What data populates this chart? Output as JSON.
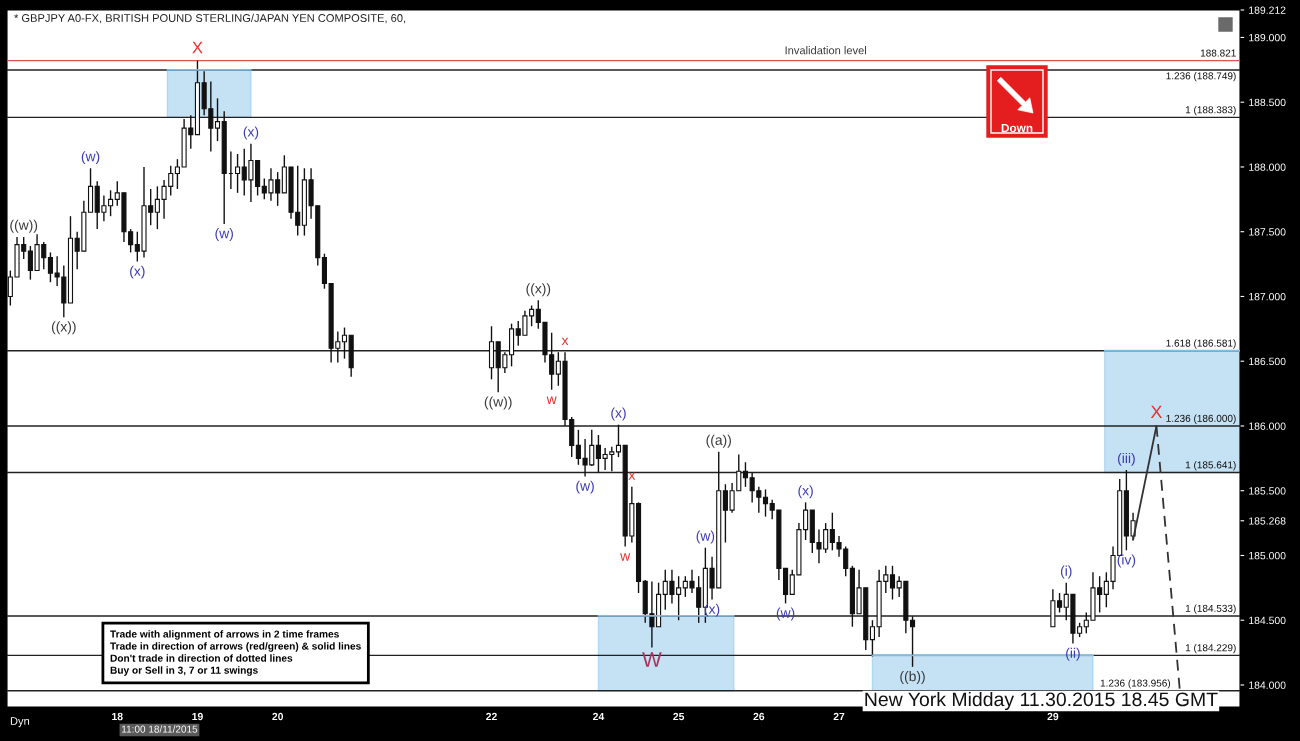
{
  "chart_data": {
    "type": "candlestick",
    "title": "* GBPJPY A0-FX, BRITISH POUND STERLING/JAPAN YEN COMPOSITE, 60,",
    "color": "#111111",
    "x": [
      "2015-11-16T16:00",
      "2015-11-16T18:00",
      "2015-11-16T20:00",
      "2015-11-16T22:00",
      "2015-11-17T00:00",
      "2015-11-17T02:00",
      "2015-11-17T04:00",
      "2015-11-17T06:00",
      "2015-11-17T08:00",
      "2015-11-17T10:00",
      "2015-11-17T12:00",
      "2015-11-17T14:00",
      "2015-11-17T16:00",
      "2015-11-17T18:00",
      "2015-11-17T20:00",
      "2015-11-17T22:00",
      "2015-11-18T00:00",
      "2015-11-18T02:00",
      "2015-11-18T04:00",
      "2015-11-18T06:00",
      "2015-11-18T08:00",
      "2015-11-18T10:00",
      "2015-11-18T12:00",
      "2015-11-18T14:00",
      "2015-11-18T16:00",
      "2015-11-18T18:00",
      "2015-11-18T20:00",
      "2015-11-18T22:00",
      "2015-11-19T00:00",
      "2015-11-19T02:00",
      "2015-11-19T04:00",
      "2015-11-19T06:00",
      "2015-11-19T08:00",
      "2015-11-19T10:00",
      "2015-11-19T12:00",
      "2015-11-19T14:00",
      "2015-11-19T16:00",
      "2015-11-19T18:00",
      "2015-11-19T20:00",
      "2015-11-19T22:00",
      "2015-11-20T00:00",
      "2015-11-20T02:00",
      "2015-11-20T04:00",
      "2015-11-20T06:00",
      "2015-11-20T08:00",
      "2015-11-20T10:00",
      "2015-11-20T12:00",
      "2015-11-20T14:00",
      "2015-11-20T16:00",
      "2015-11-20T18:00",
      "2015-11-20T20:00",
      "2015-11-20T22:00",
      "2015-11-22T16:00",
      "2015-11-22T18:00",
      "2015-11-22T20:00",
      "2015-11-22T22:00",
      "2015-11-23T00:00",
      "2015-11-23T02:00",
      "2015-11-23T04:00",
      "2015-11-23T06:00",
      "2015-11-23T08:00",
      "2015-11-23T10:00",
      "2015-11-23T12:00",
      "2015-11-23T14:00",
      "2015-11-23T16:00",
      "2015-11-23T18:00",
      "2015-11-23T20:00",
      "2015-11-23T22:00",
      "2015-11-24T00:00",
      "2015-11-24T02:00",
      "2015-11-24T04:00",
      "2015-11-24T06:00",
      "2015-11-24T08:00",
      "2015-11-24T10:00",
      "2015-11-24T12:00",
      "2015-11-24T14:00",
      "2015-11-24T16:00",
      "2015-11-24T18:00",
      "2015-11-24T20:00",
      "2015-11-24T22:00",
      "2015-11-25T00:00",
      "2015-11-25T02:00",
      "2015-11-25T04:00",
      "2015-11-25T06:00",
      "2015-11-25T08:00",
      "2015-11-25T10:00",
      "2015-11-25T12:00",
      "2015-11-25T14:00",
      "2015-11-25T16:00",
      "2015-11-25T18:00",
      "2015-11-25T20:00",
      "2015-11-25T22:00",
      "2015-11-26T00:00",
      "2015-11-26T02:00",
      "2015-11-26T04:00",
      "2015-11-26T06:00",
      "2015-11-26T08:00",
      "2015-11-26T10:00",
      "2015-11-26T12:00",
      "2015-11-26T14:00",
      "2015-11-26T16:00",
      "2015-11-26T18:00",
      "2015-11-26T20:00",
      "2015-11-26T22:00",
      "2015-11-27T00:00",
      "2015-11-27T02:00",
      "2015-11-27T04:00",
      "2015-11-27T06:00",
      "2015-11-27T08:00",
      "2015-11-27T10:00",
      "2015-11-27T12:00",
      "2015-11-27T14:00",
      "2015-11-27T16:00",
      "2015-11-27T18:00",
      "2015-11-27T20:00",
      "2015-11-27T22:00",
      "2015-11-29T16:00",
      "2015-11-29T18:00",
      "2015-11-29T20:00",
      "2015-11-29T22:00",
      "2015-11-30T00:00",
      "2015-11-30T02:00",
      "2015-11-30T04:00",
      "2015-11-30T06:00",
      "2015-11-30T08:00",
      "2015-11-30T10:00",
      "2015-11-30T12:00",
      "2015-11-30T14:00",
      "2015-11-30T16:00"
    ],
    "ohlc": [
      [
        187.0,
        187.2,
        186.93,
        187.15
      ],
      [
        187.15,
        187.46,
        187.15,
        187.4
      ],
      [
        187.4,
        187.46,
        187.29,
        187.35
      ],
      [
        187.35,
        187.39,
        187.13,
        187.2
      ],
      [
        187.2,
        187.48,
        187.2,
        187.4
      ],
      [
        187.4,
        187.42,
        187.21,
        187.3
      ],
      [
        187.3,
        187.34,
        187.11,
        187.18
      ],
      [
        187.18,
        187.31,
        187.08,
        187.15
      ],
      [
        187.15,
        187.24,
        186.84,
        186.95
      ],
      [
        186.95,
        187.62,
        186.95,
        187.45
      ],
      [
        187.45,
        187.5,
        187.21,
        187.35
      ],
      [
        187.35,
        187.74,
        187.35,
        187.65
      ],
      [
        187.65,
        187.99,
        187.65,
        187.85
      ],
      [
        187.85,
        187.89,
        187.52,
        187.65
      ],
      [
        187.65,
        187.78,
        187.58,
        187.7
      ],
      [
        187.7,
        187.82,
        187.62,
        187.75
      ],
      [
        187.75,
        187.89,
        187.7,
        187.8
      ],
      [
        187.8,
        187.8,
        187.42,
        187.5
      ],
      [
        187.5,
        187.52,
        187.34,
        187.4
      ],
      [
        187.4,
        187.5,
        187.27,
        187.35
      ],
      [
        187.35,
        188.0,
        187.3,
        187.7
      ],
      [
        187.7,
        187.83,
        187.55,
        187.65
      ],
      [
        187.65,
        187.85,
        187.52,
        187.75
      ],
      [
        187.75,
        187.9,
        187.6,
        187.85
      ],
      [
        187.85,
        188.01,
        187.78,
        187.95
      ],
      [
        187.95,
        188.06,
        187.83,
        188.0
      ],
      [
        188.0,
        188.37,
        188.0,
        188.3
      ],
      [
        188.3,
        188.4,
        188.14,
        188.25
      ],
      [
        188.25,
        188.82,
        188.25,
        188.65
      ],
      [
        188.65,
        188.74,
        188.4,
        188.45
      ],
      [
        188.45,
        188.66,
        188.12,
        188.3
      ],
      [
        188.3,
        188.53,
        188.2,
        188.35
      ],
      [
        188.35,
        188.43,
        187.56,
        187.95
      ],
      [
        187.95,
        188.12,
        187.83,
        187.95
      ],
      [
        187.95,
        188.1,
        187.8,
        188.0
      ],
      [
        188.0,
        188.14,
        187.78,
        187.9
      ],
      [
        187.9,
        188.18,
        187.73,
        188.05
      ],
      [
        188.05,
        188.05,
        187.78,
        187.85
      ],
      [
        187.85,
        187.91,
        187.75,
        187.8
      ],
      [
        187.8,
        187.99,
        187.74,
        187.9
      ],
      [
        187.9,
        187.96,
        187.7,
        187.8
      ],
      [
        187.8,
        188.09,
        187.8,
        188.0
      ],
      [
        188.0,
        188.0,
        187.6,
        187.65
      ],
      [
        187.65,
        188.01,
        187.47,
        187.55
      ],
      [
        187.55,
        187.99,
        187.47,
        187.9
      ],
      [
        187.9,
        187.99,
        187.6,
        187.7
      ],
      [
        187.7,
        187.7,
        187.24,
        187.3
      ],
      [
        187.3,
        187.33,
        187.06,
        187.1
      ],
      [
        187.1,
        187.1,
        186.49,
        186.6
      ],
      [
        186.6,
        186.73,
        186.49,
        186.65
      ],
      [
        186.65,
        186.76,
        186.52,
        186.7
      ],
      [
        186.7,
        186.7,
        186.38,
        186.45
      ],
      [
        186.45,
        186.77,
        186.36,
        186.65
      ],
      [
        186.65,
        186.65,
        186.26,
        186.45
      ],
      [
        186.45,
        186.57,
        186.41,
        186.55
      ],
      [
        186.55,
        186.79,
        186.46,
        186.75
      ],
      [
        186.75,
        186.81,
        186.62,
        186.7
      ],
      [
        186.7,
        186.89,
        186.7,
        186.85
      ],
      [
        186.85,
        186.93,
        186.77,
        186.9
      ],
      [
        186.9,
        186.97,
        186.75,
        186.8
      ],
      [
        186.8,
        186.8,
        186.49,
        186.55
      ],
      [
        186.55,
        186.72,
        186.28,
        186.4
      ],
      [
        186.4,
        186.57,
        186.31,
        186.5
      ],
      [
        186.5,
        186.57,
        186.0,
        186.05
      ],
      [
        186.05,
        186.07,
        185.76,
        185.85
      ],
      [
        185.85,
        185.97,
        185.7,
        185.75
      ],
      [
        185.75,
        185.9,
        185.61,
        185.7
      ],
      [
        185.7,
        185.97,
        185.69,
        185.85
      ],
      [
        185.85,
        185.93,
        185.64,
        185.75
      ],
      [
        185.75,
        185.83,
        185.66,
        185.78
      ],
      [
        185.78,
        185.84,
        185.65,
        185.8
      ],
      [
        185.8,
        186.01,
        185.76,
        185.85
      ],
      [
        185.85,
        185.85,
        185.07,
        185.15
      ],
      [
        185.15,
        185.53,
        185.1,
        185.4
      ],
      [
        185.4,
        185.41,
        184.71,
        184.8
      ],
      [
        184.8,
        184.81,
        184.48,
        184.55
      ],
      [
        184.55,
        184.8,
        184.29,
        184.45
      ],
      [
        184.45,
        184.79,
        184.45,
        184.7
      ],
      [
        184.7,
        184.89,
        184.58,
        184.8
      ],
      [
        184.8,
        184.89,
        184.63,
        184.7
      ],
      [
        184.7,
        184.84,
        184.5,
        184.75
      ],
      [
        184.75,
        184.84,
        184.68,
        184.8
      ],
      [
        184.8,
        184.89,
        184.71,
        184.75
      ],
      [
        184.75,
        184.84,
        184.48,
        184.6
      ],
      [
        184.6,
        185.06,
        184.48,
        184.9
      ],
      [
        184.9,
        184.99,
        184.66,
        184.75
      ],
      [
        184.75,
        185.8,
        184.75,
        185.5
      ],
      [
        185.5,
        185.55,
        185.1,
        185.35
      ],
      [
        185.35,
        185.56,
        185.33,
        185.5
      ],
      [
        185.5,
        185.78,
        185.5,
        185.65
      ],
      [
        185.65,
        185.72,
        185.53,
        185.6
      ],
      [
        185.6,
        185.64,
        185.41,
        185.5
      ],
      [
        185.5,
        185.53,
        185.33,
        185.45
      ],
      [
        185.45,
        185.51,
        185.3,
        185.4
      ],
      [
        185.4,
        185.43,
        185.28,
        185.35
      ],
      [
        185.35,
        185.35,
        184.81,
        184.9
      ],
      [
        184.9,
        184.9,
        184.63,
        184.7
      ],
      [
        184.7,
        184.89,
        184.7,
        184.85
      ],
      [
        184.85,
        185.25,
        184.85,
        185.2
      ],
      [
        185.2,
        185.41,
        185.12,
        185.35
      ],
      [
        185.35,
        185.35,
        185.02,
        185.1
      ],
      [
        185.1,
        185.2,
        184.94,
        185.05
      ],
      [
        185.05,
        185.25,
        185.02,
        185.2
      ],
      [
        185.2,
        185.33,
        185.04,
        185.1
      ],
      [
        185.1,
        185.15,
        184.99,
        185.05
      ],
      [
        185.05,
        185.07,
        184.84,
        184.9
      ],
      [
        184.9,
        184.92,
        184.45,
        184.55
      ],
      [
        184.55,
        184.89,
        184.55,
        184.75
      ],
      [
        184.75,
        184.75,
        184.27,
        184.35
      ],
      [
        184.35,
        184.5,
        184.22,
        184.45
      ],
      [
        184.45,
        184.89,
        184.37,
        184.8
      ],
      [
        184.8,
        184.92,
        184.71,
        184.85
      ],
      [
        184.85,
        184.92,
        184.66,
        184.75
      ],
      [
        184.75,
        184.84,
        184.68,
        184.8
      ],
      [
        184.8,
        184.8,
        184.4,
        184.5
      ],
      [
        184.5,
        184.53,
        184.14,
        184.45
      ],
      [
        184.45,
        184.74,
        184.45,
        184.65
      ],
      [
        184.65,
        184.71,
        184.56,
        184.6
      ],
      [
        184.6,
        184.79,
        184.5,
        184.7
      ],
      [
        184.7,
        184.7,
        184.32,
        184.4
      ],
      [
        184.4,
        184.48,
        184.37,
        184.45
      ],
      [
        184.45,
        184.56,
        184.4,
        184.5
      ],
      [
        184.5,
        184.87,
        184.5,
        184.75
      ],
      [
        184.75,
        184.84,
        184.56,
        184.7
      ],
      [
        184.7,
        184.87,
        184.6,
        184.8
      ],
      [
        184.8,
        185.07,
        184.74,
        185.0
      ],
      [
        185.0,
        185.59,
        185.0,
        185.5
      ],
      [
        185.5,
        185.66,
        185.04,
        185.15
      ],
      [
        185.15,
        185.33,
        185.12,
        185.268
      ]
    ],
    "series": [
      {
        "type": "line",
        "x": [
          "2015-11-30T16:00",
          "2015-11-30T23:00"
        ],
        "values": [
          185.12,
          186.0
        ],
        "color": "#333333",
        "line_style": "solid"
      },
      {
        "type": "line",
        "x": [
          "2015-11-30T23:00",
          "2015-12-01T06:00"
        ],
        "values": [
          186.0,
          183.956
        ],
        "color": "#333333",
        "line_style": "dashed"
      },
      {
        "type": "line",
        "x": [
          "2015-11-18T15:00",
          "2015-11-19T16:00"
        ],
        "values": [
          188.749,
          188.749
        ],
        "lower": [
          188.383,
          188.383
        ],
        "upper": [
          188.749,
          188.749
        ],
        "color": "#7fbde6"
      },
      {
        "type": "line",
        "x": [
          "2015-11-24T00:00",
          "2015-11-25T16:30"
        ],
        "values": [
          184.533,
          184.533
        ],
        "lower": [
          183.956,
          183.956
        ],
        "upper": [
          184.533,
          184.533
        ],
        "color": "#7fbde6"
      },
      {
        "type": "line",
        "x": [
          "2015-11-27T10:00",
          "2015-11-30T04:00"
        ],
        "values": [
          184.229,
          184.229
        ],
        "lower": [
          183.956,
          183.956
        ],
        "upper": [
          184.229,
          184.229
        ],
        "color": "#7fbde6"
      },
      {
        "type": "line",
        "x": [
          "2015-11-30T07:30",
          "2015-12-02T00:00"
        ],
        "values": [
          186.581,
          186.581
        ],
        "lower": [
          185.641,
          185.641
        ],
        "upper": [
          186.581,
          186.581
        ],
        "color": "#7fbde6"
      }
    ],
    "xlim": [
      "2015-11-16T15:00",
      "2015-12-02T00:00"
    ],
    "xticks": [
      {
        "value": "2015-11-18T00:00",
        "label": "18"
      },
      {
        "value": "2015-11-19T00:00",
        "label": "19"
      },
      {
        "value": "2015-11-20T00:00",
        "label": "20"
      },
      {
        "value": "2015-11-22T16:00",
        "label": "22"
      },
      {
        "value": "2015-11-24T00:00",
        "label": "24"
      },
      {
        "value": "2015-11-25T00:00",
        "label": "25"
      },
      {
        "value": "2015-11-26T00:00",
        "label": "26"
      },
      {
        "value": "2015-11-27T00:00",
        "label": "27"
      },
      {
        "value": "2015-11-29T16:00",
        "label": "29"
      }
    ],
    "ylim": [
      183.83,
      189.212
    ],
    "yticks": [
      {
        "value": 184,
        "label": "184.000"
      },
      {
        "value": 184.5,
        "label": "184.500"
      },
      {
        "value": 185,
        "label": "185.000"
      },
      {
        "value": 185.268,
        "label": "185.268"
      },
      {
        "value": 185.5,
        "label": "185.500"
      },
      {
        "value": 186,
        "label": "186.000"
      },
      {
        "value": 186.5,
        "label": "186.500"
      },
      {
        "value": 187,
        "label": "187.000"
      },
      {
        "value": 187.5,
        "label": "187.500"
      },
      {
        "value": 188,
        "label": "188.000"
      },
      {
        "value": 188.5,
        "label": "188.500"
      },
      {
        "value": 189,
        "label": "189.000"
      },
      {
        "value": 189.212,
        "label": "189.212"
      }
    ],
    "ref_lines": [
      {
        "axis": "y",
        "value": 188.821,
        "label": "188.821",
        "color": "#e05050"
      },
      {
        "axis": "y",
        "value": 188.749,
        "label": "1.236 (188.749)",
        "color": "#222222"
      },
      {
        "axis": "y",
        "value": 188.383,
        "label": "1 (188.383)",
        "color": "#222222"
      },
      {
        "axis": "y",
        "value": 186.581,
        "label": "1.618 (186.581)",
        "color": "#222222"
      },
      {
        "axis": "y",
        "value": 186.0,
        "label": "1.236 (186.000)",
        "color": "#222222"
      },
      {
        "axis": "y",
        "value": 185.641,
        "label": "1 (185.641)",
        "color": "#222222"
      },
      {
        "axis": "y",
        "value": 184.533,
        "label": "1 (184.533)",
        "color": "#222222"
      },
      {
        "axis": "y",
        "value": 184.229,
        "label": "1 (184.229)",
        "color": "#222222"
      },
      {
        "axis": "y",
        "value": 183.956,
        "label": "1.236 (183.956)",
        "color": "#222222"
      }
    ],
    "annotations": [
      "New York Midday 11.30.2015 18.45 GMT",
      "Trade with alignment of arrows in 2 time frames\nTrade in direction of arrows (red/green) & solid lines\nDon't trade in direction of dotted lines\nBuy or Sell in 3, 7 or 11 swings",
      "Down",
      "11:00 18/11/2015",
      "Dyn",
      {
        "text": "((w))",
        "x": "2015-11-16T20:00",
        "y": 187.46
      },
      {
        "text": "((x))",
        "x": "2015-11-17T08:00",
        "y": 186.84
      },
      {
        "text": "(w)",
        "x": "2015-11-17T16:00",
        "y": 187.99
      },
      {
        "text": "(x)",
        "x": "2015-11-18T06:00",
        "y": 187.27
      },
      {
        "text": "X",
        "x": "2015-11-19T00:00",
        "y": 188.82
      },
      {
        "text": "(x)",
        "x": "2015-11-19T16:00",
        "y": 188.18
      },
      {
        "text": "(w)",
        "x": "2015-11-19T08:00",
        "y": 187.56
      },
      {
        "text": "((x))",
        "x": "2015-11-23T06:00",
        "y": 186.97
      },
      {
        "text": "((w))",
        "x": "2015-11-22T18:00",
        "y": 186.26
      },
      {
        "text": "x",
        "x": "2015-11-23T14:00",
        "y": 186.57
      },
      {
        "text": "w",
        "x": "2015-11-23T10:00",
        "y": 186.28
      },
      {
        "text": "(x)",
        "x": "2015-11-24T06:00",
        "y": 186.01
      },
      {
        "text": "(w)",
        "x": "2015-11-23T20:00",
        "y": 185.61
      },
      {
        "text": "x",
        "x": "2015-11-24T10:00",
        "y": 185.53
      },
      {
        "text": "w",
        "x": "2015-11-24T08:00",
        "y": 185.07
      },
      {
        "text": "W",
        "x": "2015-11-24T16:00",
        "y": 184.29
      },
      {
        "text": "(w)",
        "x": "2015-11-25T08:00",
        "y": 185.06
      },
      {
        "text": "(x)",
        "x": "2015-11-25T10:00",
        "y": 184.66
      },
      {
        "text": "((a))",
        "x": "2015-11-25T12:00",
        "y": 185.8
      },
      {
        "text": "(w)",
        "x": "2015-11-26T08:00",
        "y": 184.63
      },
      {
        "text": "(x)",
        "x": "2015-11-26T14:00",
        "y": 185.41
      },
      {
        "text": "((b))",
        "x": "2015-11-27T22:00",
        "y": 184.14
      },
      {
        "text": "(i)",
        "x": "2015-11-29T20:00",
        "y": 184.79
      },
      {
        "text": "(ii)",
        "x": "2015-11-29T22:00",
        "y": 184.32
      },
      {
        "text": "(iii)",
        "x": "2015-11-30T14:00",
        "y": 185.66
      },
      {
        "text": "(iv)",
        "x": "2015-11-30T14:00",
        "y": 185.04
      },
      {
        "text": "X",
        "x": "2015-11-30T23:00",
        "y": 186.0
      },
      {
        "text": "Invalidation level",
        "x": "2015-11-26T20:00",
        "y": 188.821
      }
    ]
  }
}
